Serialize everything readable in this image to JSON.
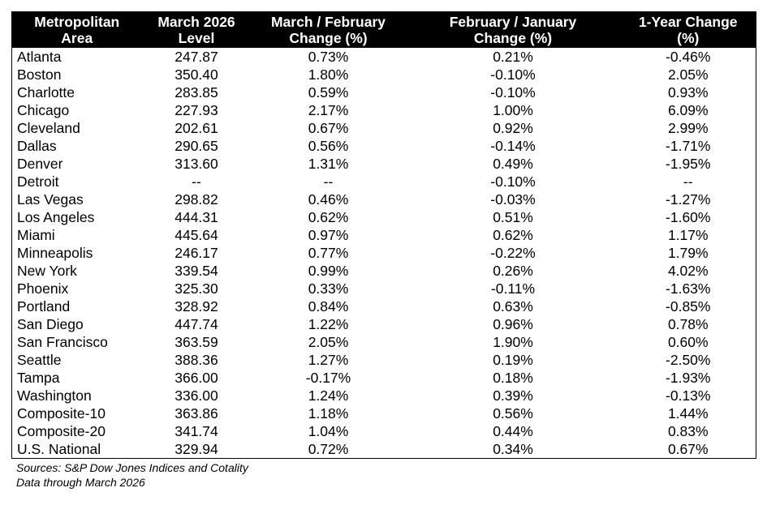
{
  "table": {
    "headers": [
      [
        "Metropolitan",
        "Area"
      ],
      [
        "March 2026",
        "Level"
      ],
      [
        "March / February",
        "Change (%)"
      ],
      [
        "February / January",
        "Change (%)"
      ],
      [
        "1-Year Change",
        "(%)"
      ]
    ],
    "rows": [
      [
        "Atlanta",
        "247.87",
        "0.73%",
        "0.21%",
        "-0.46%"
      ],
      [
        "Boston",
        "350.40",
        "1.80%",
        "-0.10%",
        "2.05%"
      ],
      [
        "Charlotte",
        "283.85",
        "0.59%",
        "-0.10%",
        "0.93%"
      ],
      [
        "Chicago",
        "227.93",
        "2.17%",
        "1.00%",
        "6.09%"
      ],
      [
        "Cleveland",
        "202.61",
        "0.67%",
        "0.92%",
        "2.99%"
      ],
      [
        "Dallas",
        "290.65",
        "0.56%",
        "-0.14%",
        "-1.71%"
      ],
      [
        "Denver",
        "313.60",
        "1.31%",
        "0.49%",
        "-1.95%"
      ],
      [
        "Detroit",
        "--",
        "--",
        "-0.10%",
        "--"
      ],
      [
        "Las Vegas",
        "298.82",
        "0.46%",
        "-0.03%",
        "-1.27%"
      ],
      [
        "Los Angeles",
        "444.31",
        "0.62%",
        "0.51%",
        "-1.60%"
      ],
      [
        "Miami",
        "445.64",
        "0.97%",
        "0.62%",
        "1.17%"
      ],
      [
        "Minneapolis",
        "246.17",
        "0.77%",
        "-0.22%",
        "1.79%"
      ],
      [
        "New York",
        "339.54",
        "0.99%",
        "0.26%",
        "4.02%"
      ],
      [
        "Phoenix",
        "325.30",
        "0.33%",
        "-0.11%",
        "-1.63%"
      ],
      [
        "Portland",
        "328.92",
        "0.84%",
        "0.63%",
        "-0.85%"
      ],
      [
        "San Diego",
        "447.74",
        "1.22%",
        "0.96%",
        "0.78%"
      ],
      [
        "San Francisco",
        "363.59",
        "2.05%",
        "1.90%",
        "0.60%"
      ],
      [
        "Seattle",
        "388.36",
        "1.27%",
        "0.19%",
        "-2.50%"
      ],
      [
        "Tampa",
        "366.00",
        "-0.17%",
        "0.18%",
        "-1.93%"
      ],
      [
        "Washington",
        "336.00",
        "1.24%",
        "0.39%",
        "-0.13%"
      ],
      [
        "Composite-10",
        "363.86",
        "1.18%",
        "0.56%",
        "1.44%"
      ],
      [
        "Composite-20",
        "341.74",
        "1.04%",
        "0.44%",
        "0.83%"
      ],
      [
        "U.S. National",
        "329.94",
        "0.72%",
        "0.34%",
        "0.67%"
      ]
    ]
  },
  "footer": {
    "sources": "Sources: S&P Dow Jones Indices and Cotality",
    "data_through": "Data through March 2026"
  },
  "colors": {
    "header_background": "#000000",
    "header_text": "#ffffff",
    "body_text": "#000000"
  }
}
